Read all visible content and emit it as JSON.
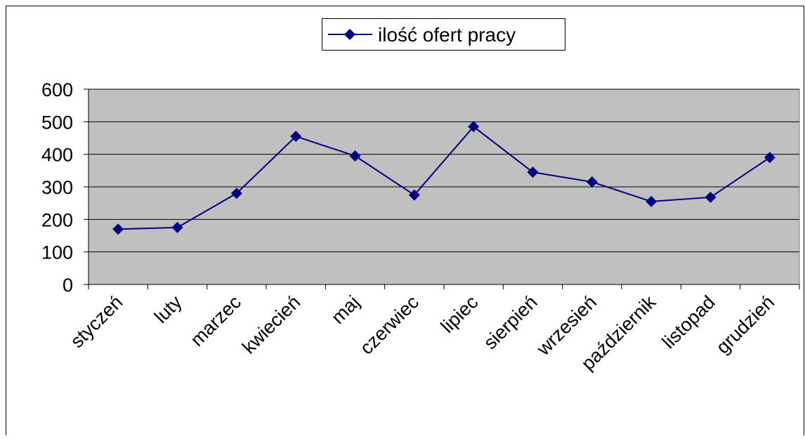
{
  "chart_data": {
    "type": "line",
    "categories": [
      "styczeń",
      "luty",
      "marzec",
      "kwiecień",
      "maj",
      "czerwiec",
      "lipiec",
      "sierpień",
      "wrzesień",
      "październik",
      "listopad",
      "grudzień"
    ],
    "series": [
      {
        "name": "ilość ofert pracy",
        "color": "#000080",
        "values": [
          170,
          175,
          280,
          455,
          395,
          275,
          485,
          345,
          315,
          255,
          268,
          390
        ]
      }
    ],
    "ylim": [
      0,
      600
    ],
    "yticks": [
      0,
      100,
      200,
      300,
      400,
      500,
      600
    ],
    "grid": true,
    "legend": "top"
  }
}
